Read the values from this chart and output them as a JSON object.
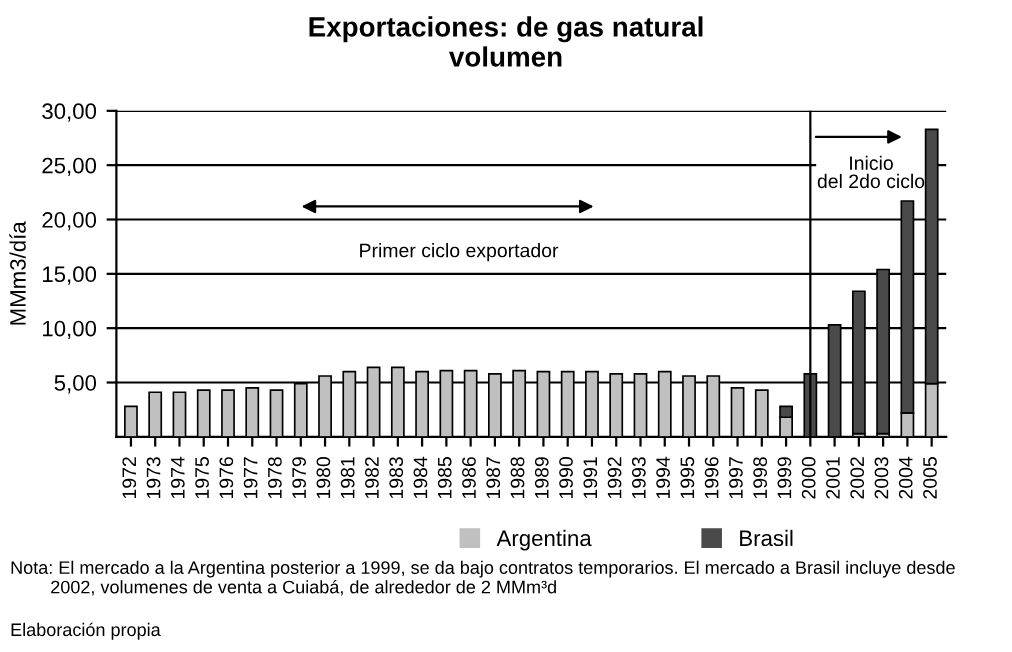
{
  "chart_data": {
    "type": "bar",
    "stacked": true,
    "title": "Exportaciones: de gas natural\nvolumen",
    "ylabel": "MMm3/día",
    "categories": [
      "1972",
      "1973",
      "1974",
      "1975",
      "1976",
      "1977",
      "1978",
      "1979",
      "1980",
      "1981",
      "1982",
      "1983",
      "1984",
      "1985",
      "1986",
      "1987",
      "1988",
      "1989",
      "1990",
      "1991",
      "1992",
      "1993",
      "1994",
      "1995",
      "1996",
      "1997",
      "1998",
      "1999",
      "2000",
      "2001",
      "2002",
      "2003",
      "2004",
      "2005"
    ],
    "series": [
      {
        "name": "Argentina",
        "color": "#c0c0c0",
        "values": [
          2.8,
          4.1,
          4.1,
          4.3,
          4.3,
          4.5,
          4.3,
          4.9,
          5.6,
          6.0,
          6.4,
          6.4,
          6.0,
          6.1,
          6.1,
          5.8,
          6.1,
          6.0,
          6.0,
          6.0,
          5.8,
          5.8,
          6.0,
          5.6,
          5.6,
          4.5,
          4.3,
          1.8,
          0,
          0,
          0.3,
          0.3,
          2.2,
          4.9
        ]
      },
      {
        "name": "Brasil",
        "color": "#4a4a4a",
        "values": [
          0,
          0,
          0,
          0,
          0,
          0,
          0,
          0,
          0,
          0,
          0,
          0,
          0,
          0,
          0,
          0,
          0,
          0,
          0,
          0,
          0,
          0,
          0,
          0,
          0,
          0,
          0,
          1.0,
          5.8,
          10.3,
          13.1,
          15.1,
          19.5,
          23.4
        ]
      }
    ],
    "ylim": [
      0,
      30
    ],
    "yticks": [
      {
        "value": 5,
        "label": "5,00"
      },
      {
        "value": 10,
        "label": "10,00"
      },
      {
        "value": 15,
        "label": "15,00"
      },
      {
        "value": 20,
        "label": "20,00"
      },
      {
        "value": 25,
        "label": "25,00"
      },
      {
        "value": 30,
        "label": "30,00"
      }
    ],
    "grid": "y",
    "legend": "bottom",
    "ref_lines": [
      {
        "axis": "x",
        "value": "2000",
        "color": "#000000"
      }
    ],
    "annotations": [
      "Primer ciclo exportador",
      "Inicio\ndel 2do ciclo",
      "Nota: El mercado a la Argentina posterior a 1999, se da bajo contratos temporarios. El mercado a Brasil incluye desde\n        2002, volumenes de venta a Cuiabá, de alrededor de 2 MMm³d",
      "Elaboración propia"
    ]
  }
}
